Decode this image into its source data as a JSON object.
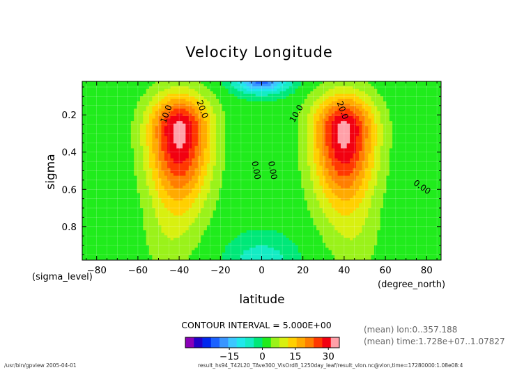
{
  "title": "Velocity Longitude",
  "chart_data": {
    "type": "contour",
    "title": "Velocity Longitude",
    "xlabel": "latitude",
    "ylabel": "sigma",
    "x_units_label": "(degree_north)",
    "y_units_label": "(sigma_level)",
    "xlim": [
      -87,
      87
    ],
    "ylim": [
      0.98,
      0.02
    ],
    "x_ticks": [
      -80,
      -60,
      -40,
      -20,
      0,
      20,
      40,
      60,
      80
    ],
    "y_ticks": [
      0.2,
      0.4,
      0.6,
      0.8
    ],
    "contour_interval_text": "CONTOUR INTERVAL = 5.000E+00",
    "contour_labels": [
      {
        "text": "10.0",
        "x": -45,
        "y": 0.2,
        "rotate": -70
      },
      {
        "text": "20.0",
        "x": -30,
        "y": 0.175,
        "rotate": 70
      },
      {
        "text": "0.00",
        "x": -4,
        "y": 0.5,
        "rotate": 80
      },
      {
        "text": "0.00",
        "x": 4,
        "y": 0.5,
        "rotate": 80
      },
      {
        "text": "10.0",
        "x": 18,
        "y": 0.2,
        "rotate": -60
      },
      {
        "text": "20.0",
        "x": 38,
        "y": 0.18,
        "rotate": 70
      },
      {
        "text": "0.00",
        "x": 77,
        "y": 0.6,
        "rotate": 35
      }
    ],
    "colorbar": {
      "tick_labels": [
        "−15",
        "0",
        "15",
        "30"
      ],
      "tick_values": [
        -15,
        0,
        15,
        30
      ],
      "vmin": -35,
      "vmax": 35,
      "colors": [
        "#8a00b8",
        "#2200c8",
        "#0028ee",
        "#1b62ff",
        "#3a96ff",
        "#3cc7ff",
        "#20e8ec",
        "#14ecc4",
        "#00e878",
        "#20ec1c",
        "#9af21a",
        "#d8f010",
        "#ffd000",
        "#ffaa00",
        "#ff7e00",
        "#ff3800",
        "#f20010",
        "#ffa0a8"
      ]
    },
    "jets": [
      {
        "lat": -40,
        "sigma": 0.28,
        "max": 32
      },
      {
        "lat": 40,
        "sigma": 0.28,
        "max": 32
      }
    ]
  },
  "footer": {
    "mean_lon": "(mean) lon:0..357.188",
    "mean_time": "(mean) time:1.728e+07..1.07827",
    "program": "/usr/bin/gpview  2005-04-01",
    "file": "result_hs94_T42L20_TAve300_VisOrd8_1250day_leaf/result_vlon.nc@vlon,time=17280000:1.08e08:4"
  },
  "colors": {
    "frame": "#000000",
    "grid": "#ffffff"
  }
}
